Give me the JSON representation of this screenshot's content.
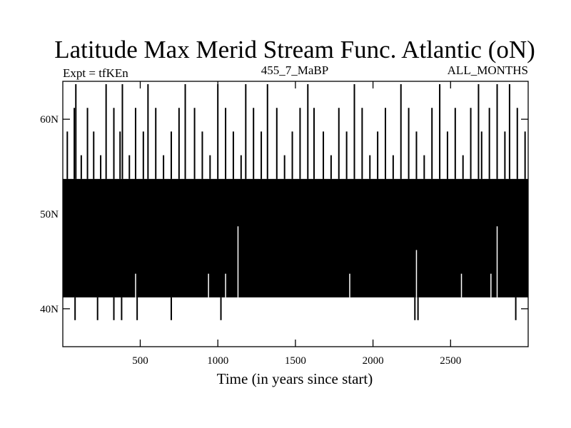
{
  "chart_data": {
    "type": "line",
    "title": "Latitude Max Merid Stream Func. Atlantic (oN)",
    "subtitle_left": "Expt = tfKEn",
    "subtitle_center": "455_7_MaBP",
    "subtitle_right": "ALL_MONTHS",
    "xlabel": "Time (in years since start)",
    "ylabel": "",
    "xlim": [
      1,
      3000
    ],
    "ylim": [
      36,
      64
    ],
    "x_ticks": [
      500,
      1000,
      1500,
      2000,
      2500
    ],
    "x_tick_labels": [
      "500",
      "1000",
      "1500",
      "2000",
      "2500"
    ],
    "y_ticks": [
      40,
      50,
      60
    ],
    "y_tick_labels": [
      "40N",
      "50N",
      "60N"
    ],
    "y_levels": [
      38.8,
      41.2,
      43.7,
      46.2,
      48.7,
      51.2,
      53.7,
      56.2,
      58.7,
      61.2,
      63.7
    ],
    "baseline_range_years": [
      1,
      3000
    ],
    "baseline_range_lat": [
      41.2,
      53.7
    ],
    "series": [
      {
        "color": "#000000",
        "sampling": "annual",
        "upper_spikes": [
          {
            "x": 30,
            "y": 58.7
          },
          {
            "x": 75,
            "y": 61.2
          },
          {
            "x": 85,
            "y": 63.7
          },
          {
            "x": 120,
            "y": 56.2
          },
          {
            "x": 160,
            "y": 61.2
          },
          {
            "x": 200,
            "y": 58.7
          },
          {
            "x": 245,
            "y": 56.2
          },
          {
            "x": 280,
            "y": 63.7
          },
          {
            "x": 330,
            "y": 61.2
          },
          {
            "x": 370,
            "y": 58.7
          },
          {
            "x": 385,
            "y": 63.7
          },
          {
            "x": 430,
            "y": 56.2
          },
          {
            "x": 470,
            "y": 61.2
          },
          {
            "x": 520,
            "y": 58.7
          },
          {
            "x": 550,
            "y": 63.7
          },
          {
            "x": 600,
            "y": 61.2
          },
          {
            "x": 650,
            "y": 56.2
          },
          {
            "x": 700,
            "y": 58.7
          },
          {
            "x": 750,
            "y": 61.2
          },
          {
            "x": 790,
            "y": 63.7
          },
          {
            "x": 850,
            "y": 61.2
          },
          {
            "x": 900,
            "y": 58.7
          },
          {
            "x": 950,
            "y": 56.2
          },
          {
            "x": 1000,
            "y": 63.7
          },
          {
            "x": 1050,
            "y": 61.2
          },
          {
            "x": 1100,
            "y": 58.7
          },
          {
            "x": 1150,
            "y": 56.2
          },
          {
            "x": 1180,
            "y": 63.7
          },
          {
            "x": 1230,
            "y": 61.2
          },
          {
            "x": 1280,
            "y": 58.7
          },
          {
            "x": 1320,
            "y": 63.7
          },
          {
            "x": 1380,
            "y": 61.2
          },
          {
            "x": 1430,
            "y": 56.2
          },
          {
            "x": 1480,
            "y": 58.7
          },
          {
            "x": 1530,
            "y": 61.2
          },
          {
            "x": 1580,
            "y": 63.7
          },
          {
            "x": 1620,
            "y": 61.2
          },
          {
            "x": 1680,
            "y": 58.7
          },
          {
            "x": 1730,
            "y": 56.2
          },
          {
            "x": 1780,
            "y": 61.2
          },
          {
            "x": 1830,
            "y": 58.7
          },
          {
            "x": 1880,
            "y": 63.7
          },
          {
            "x": 1930,
            "y": 61.2
          },
          {
            "x": 1980,
            "y": 56.2
          },
          {
            "x": 2030,
            "y": 58.7
          },
          {
            "x": 2080,
            "y": 61.2
          },
          {
            "x": 2130,
            "y": 56.2
          },
          {
            "x": 2180,
            "y": 63.7
          },
          {
            "x": 2230,
            "y": 61.2
          },
          {
            "x": 2280,
            "y": 58.7
          },
          {
            "x": 2330,
            "y": 56.2
          },
          {
            "x": 2380,
            "y": 61.2
          },
          {
            "x": 2430,
            "y": 63.7
          },
          {
            "x": 2480,
            "y": 58.7
          },
          {
            "x": 2530,
            "y": 61.2
          },
          {
            "x": 2580,
            "y": 56.2
          },
          {
            "x": 2630,
            "y": 61.2
          },
          {
            "x": 2680,
            "y": 63.7
          },
          {
            "x": 2700,
            "y": 58.7
          },
          {
            "x": 2750,
            "y": 61.2
          },
          {
            "x": 2800,
            "y": 63.7
          },
          {
            "x": 2850,
            "y": 58.7
          },
          {
            "x": 2880,
            "y": 63.7
          },
          {
            "x": 2930,
            "y": 61.2
          },
          {
            "x": 2980,
            "y": 58.7
          }
        ],
        "lower_spikes": [
          {
            "x": 80,
            "y": 38.8
          },
          {
            "x": 225,
            "y": 38.8
          },
          {
            "x": 330,
            "y": 38.8
          },
          {
            "x": 380,
            "y": 38.8
          },
          {
            "x": 480,
            "y": 38.8
          },
          {
            "x": 700,
            "y": 38.8
          },
          {
            "x": 1020,
            "y": 38.8
          },
          {
            "x": 2270,
            "y": 38.8
          },
          {
            "x": 2290,
            "y": 38.8
          },
          {
            "x": 2920,
            "y": 38.8
          }
        ],
        "white_gaps": [
          {
            "x": 470,
            "y": 43.7
          },
          {
            "x": 940,
            "y": 43.7
          },
          {
            "x": 1050,
            "y": 43.7
          },
          {
            "x": 1130,
            "y": 48.7
          },
          {
            "x": 1850,
            "y": 43.7
          },
          {
            "x": 2280,
            "y": 46.2
          },
          {
            "x": 2570,
            "y": 43.7
          },
          {
            "x": 2760,
            "y": 43.7
          },
          {
            "x": 2800,
            "y": 48.7
          }
        ]
      }
    ]
  }
}
